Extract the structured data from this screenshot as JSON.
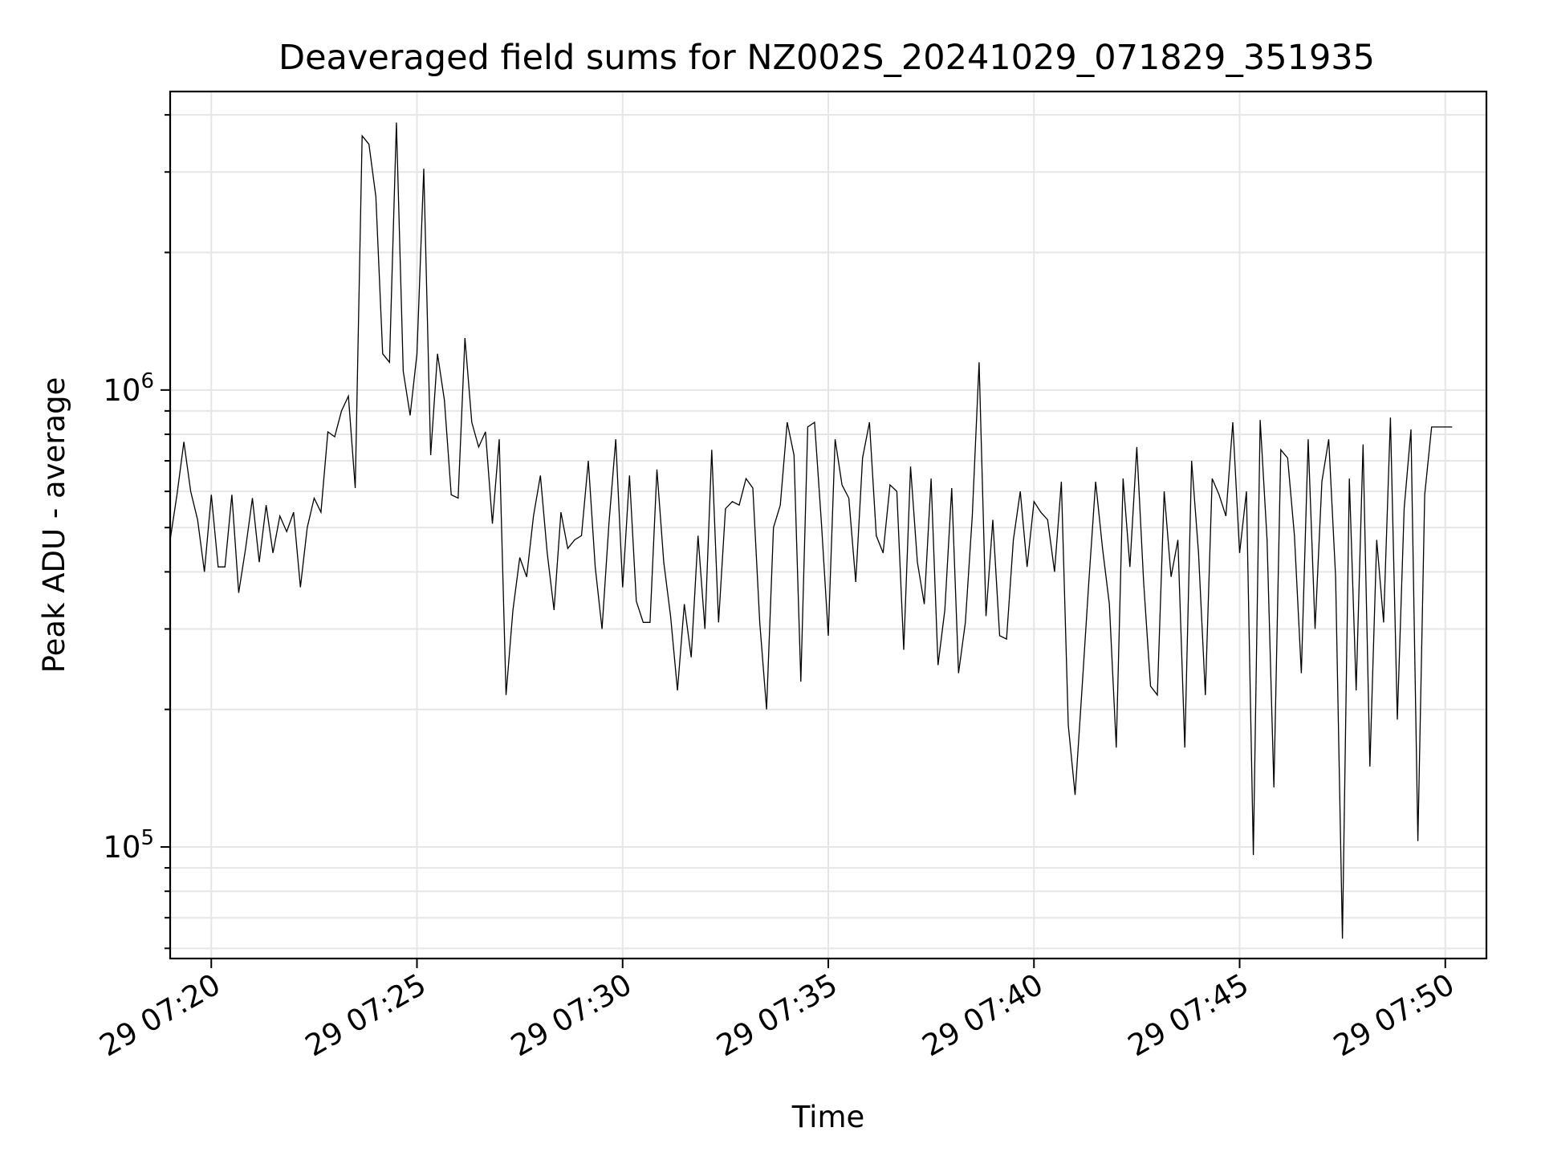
{
  "chart_data": {
    "type": "line",
    "title": "Deaveraged field sums for NZ002S_20241029_071829_351935",
    "xlabel": "Time",
    "ylabel": "Peak ADU - average",
    "yscale": "log",
    "grid": true,
    "x_ticks": [
      "29 07:20",
      "29 07:25",
      "29 07:30",
      "29 07:35",
      "29 07:40",
      "29 07:45",
      "29 07:50"
    ],
    "y_ticks": [
      {
        "base": "10",
        "exp": "5"
      },
      {
        "base": "10",
        "exp": "6"
      }
    ],
    "xlim": [
      "2024-10-29 07:19",
      "2024-10-29 07:51"
    ],
    "ylim": [
      57000,
      4500000
    ],
    "series": [
      {
        "x": [
          "2024-10-29 07:19:00",
          "2024-10-29 07:51:00"
        ],
        "values": [
          470000,
          840000
        ]
      }
    ],
    "x_start": "2024-10-29 07:19:00",
    "x_step_seconds": 10,
    "values": [
      470000,
      590000,
      770000,
      600000,
      520000,
      400000,
      590000,
      410000,
      410000,
      590000,
      360000,
      450000,
      580000,
      420000,
      560000,
      440000,
      530000,
      490000,
      540000,
      370000,
      500000,
      580000,
      540000,
      810000,
      790000,
      900000,
      970000,
      610000,
      3600000,
      3450000,
      2650000,
      1200000,
      1150000,
      3850000,
      1100000,
      880000,
      1200000,
      3050000,
      720000,
      1200000,
      950000,
      590000,
      580000,
      1300000,
      850000,
      750000,
      810000,
      510000,
      780000,
      215000,
      330000,
      430000,
      390000,
      530000,
      650000,
      440000,
      330000,
      540000,
      450000,
      470000,
      480000,
      700000,
      410000,
      300000,
      510000,
      780000,
      370000,
      650000,
      345000,
      310000,
      310000,
      670000,
      420000,
      320000,
      220000,
      340000,
      260000,
      480000,
      300000,
      740000,
      310000,
      550000,
      570000,
      560000,
      640000,
      610000,
      310000,
      200000,
      500000,
      560000,
      850000,
      720000,
      230000,
      830000,
      850000,
      510000,
      290000,
      780000,
      620000,
      580000,
      380000,
      710000,
      850000,
      480000,
      440000,
      620000,
      600000,
      270000,
      680000,
      420000,
      340000,
      640000,
      250000,
      330000,
      610000,
      240000,
      310000,
      530000,
      1150000,
      320000,
      520000,
      290000,
      285000,
      470000,
      600000,
      410000,
      570000,
      540000,
      520000,
      400000,
      630000,
      185000,
      130000,
      220000,
      380000,
      630000,
      450000,
      340000,
      165000,
      640000,
      410000,
      750000,
      380000,
      225000,
      215000,
      600000,
      390000,
      470000,
      165000,
      700000,
      440000,
      215000,
      640000,
      590000,
      530000,
      850000,
      440000,
      600000,
      96000,
      860000,
      470000,
      135000,
      740000,
      710000,
      480000,
      240000,
      780000,
      300000,
      630000,
      780000,
      390000,
      63000,
      640000,
      220000,
      760000,
      150000,
      470000,
      310000,
      870000,
      190000,
      550000,
      820000,
      103000,
      590000,
      830000,
      830000,
      830000,
      830000
    ]
  }
}
